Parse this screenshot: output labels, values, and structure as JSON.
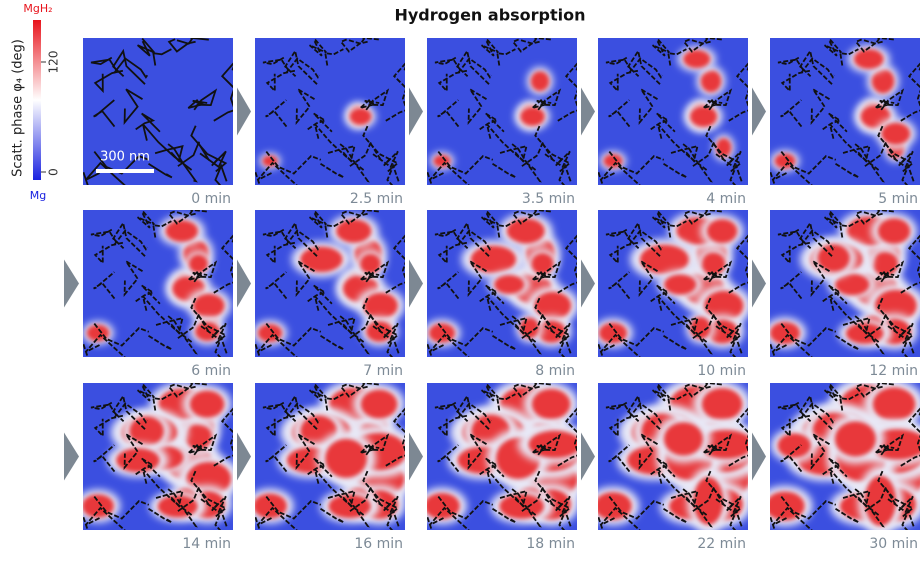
{
  "header": {
    "title": "Hydrogen absorption"
  },
  "colorbar": {
    "axis_label": "Scatt. phase φ₄ (deg)",
    "top_label": "MgH₂",
    "bottom_label": "Mg",
    "ticks": [
      120,
      0
    ]
  },
  "scale_bar": "300 nm",
  "panels": [
    {
      "time": "0 min"
    },
    {
      "time": "2.5 min"
    },
    {
      "time": "3.5 min"
    },
    {
      "time": "4 min"
    },
    {
      "time": "5 min"
    },
    {
      "time": "6 min"
    },
    {
      "time": "7 min"
    },
    {
      "time": "8 min"
    },
    {
      "time": "10 min"
    },
    {
      "time": "12 min"
    },
    {
      "time": "14 min"
    },
    {
      "time": "16 min"
    },
    {
      "time": "18 min"
    },
    {
      "time": "22 min"
    },
    {
      "time": "30 min"
    }
  ]
}
